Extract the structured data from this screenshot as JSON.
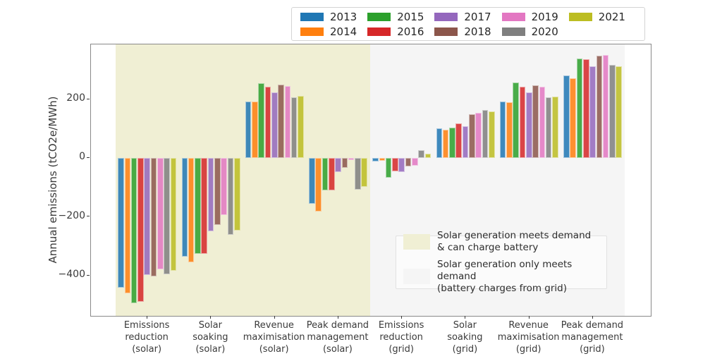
{
  "chart_data": {
    "type": "bar",
    "title": "",
    "xlabel": "",
    "ylabel": "Annual emissions (tCO2e/MWh)",
    "ylim": [
      -538,
      386
    ],
    "yticks": [
      {
        "label": "200",
        "value": 200
      },
      {
        "label": "0",
        "value": 0
      },
      {
        "label": "−200",
        "value": -200
      },
      {
        "label": "−400",
        "value": -400
      }
    ],
    "grid": false,
    "legend_position": "top right, 5 columns, 2 rows",
    "categories": [
      "Emissions\nreduction\n(solar)",
      "Solar\nsoaking\n(solar)",
      "Revenue\nmaximisation\n(solar)",
      "Peak demand\nmanagement\n(solar)",
      "Emissions\nreduction\n(grid)",
      "Solar\nsoaking\n(grid)",
      "Revenue\nmaximisation\n(grid)",
      "Peak demand\nmanagement\n(grid)"
    ],
    "series": [
      {
        "name": "2013",
        "color": "#1f77b4",
        "values": [
          -443,
          -336,
          192,
          -156,
          -12,
          101,
          192,
          281
        ]
      },
      {
        "name": "2014",
        "color": "#ff7f0e",
        "values": [
          -462,
          -355,
          192,
          -183,
          -11,
          96,
          190,
          271
        ]
      },
      {
        "name": "2015",
        "color": "#2ca02c",
        "values": [
          -495,
          -326,
          255,
          -110,
          -67,
          103,
          257,
          338
        ]
      },
      {
        "name": "2016",
        "color": "#d62728",
        "values": [
          -491,
          -327,
          243,
          -110,
          -45,
          118,
          243,
          336
        ]
      },
      {
        "name": "2017",
        "color": "#9467bd",
        "values": [
          -400,
          -250,
          224,
          -49,
          -48,
          108,
          222,
          312
        ]
      },
      {
        "name": "2018",
        "color": "#8c564b",
        "values": [
          -404,
          -229,
          249,
          -35,
          -29,
          149,
          248,
          347
        ]
      },
      {
        "name": "2019",
        "color": "#e377c2",
        "values": [
          -379,
          -195,
          244,
          -8,
          -27,
          154,
          243,
          350
        ]
      },
      {
        "name": "2020",
        "color": "#7f7f7f",
        "values": [
          -396,
          -262,
          207,
          -109,
          27,
          163,
          205,
          317
        ]
      },
      {
        "name": "2021",
        "color": "#bcbd22",
        "values": [
          -384,
          -247,
          210,
          -98,
          13,
          157,
          208,
          311
        ]
      }
    ],
    "regions": [
      {
        "label": "Solar generation meets demand\n & can charge battery",
        "color": "#f0efd4",
        "start_category": 0,
        "end_category": 4
      },
      {
        "label": "Solar generation only meets demand\n (battery charges from grid)",
        "color": "#f5f5f5",
        "start_category": 4,
        "end_category": 8
      }
    ]
  }
}
